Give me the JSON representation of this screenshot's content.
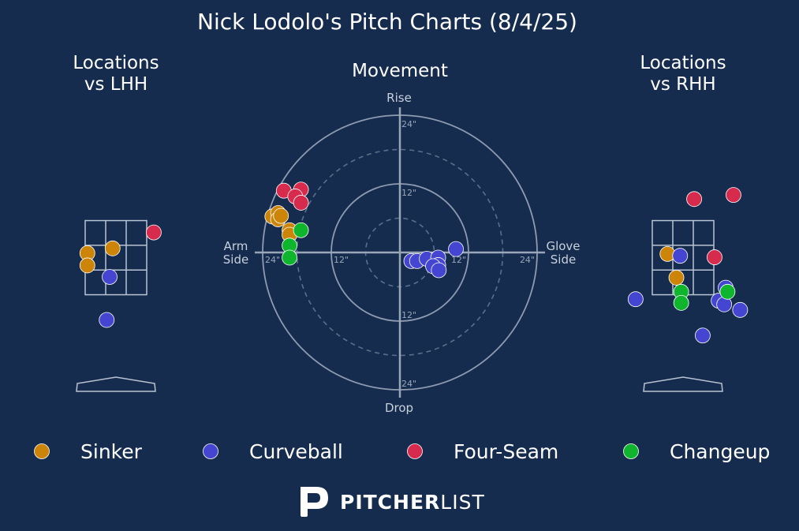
{
  "title": "Nick Lodolo's Pitch Charts (8/4/25)",
  "colors": {
    "background": "#152c4f",
    "Sinker": "#cc8508",
    "Curveball": "#4446d2",
    "Four-Seam": "#d62b4d",
    "Changeup": "#0fb52c"
  },
  "legend": [
    "Sinker",
    "Curveball",
    "Four-Seam",
    "Changeup"
  ],
  "brand": {
    "bold": "PITCHER",
    "light": "LIST",
    "logo_icon": "pitcherlist-p-logo-icon"
  },
  "chart_data": [
    {
      "type": "scatter",
      "title_lines": [
        "Locations",
        "vs LHH"
      ],
      "units": "plate location (ft), catcher view",
      "xlim": [
        -1.8,
        1.8
      ],
      "ylim": [
        -0.6,
        4.4
      ],
      "strike_zone": {
        "x": [
          -0.83,
          0.83
        ],
        "z": [
          1.5,
          3.5
        ]
      },
      "points": [
        {
          "pitch": "Sinker",
          "x": -0.77,
          "z": 2.62
        },
        {
          "pitch": "Sinker",
          "x": -0.77,
          "z": 2.29
        },
        {
          "pitch": "Sinker",
          "x": -0.09,
          "z": 2.75
        },
        {
          "pitch": "Four-Seam",
          "x": 1.02,
          "z": 3.18
        },
        {
          "pitch": "Curveball",
          "x": -0.17,
          "z": 1.98
        },
        {
          "pitch": "Curveball",
          "x": -0.25,
          "z": 0.82
        }
      ]
    },
    {
      "type": "scatter",
      "title": "Movement",
      "axis_labels": {
        "top": "Rise",
        "bottom": "Drop",
        "left": [
          "Arm",
          "Side"
        ],
        "right": [
          "Glove",
          "Side"
        ]
      },
      "units": "inches",
      "rings": [
        6,
        12,
        18,
        24
      ],
      "ring_labels": [
        "12\"",
        "24\""
      ],
      "xlim": [
        -25,
        25
      ],
      "ylim": [
        -25,
        25
      ],
      "points": [
        {
          "pitch": "Four-Seam",
          "x": -20.3,
          "y": 10.8
        },
        {
          "pitch": "Four-Seam",
          "x": -17.3,
          "y": 11.0
        },
        {
          "pitch": "Four-Seam",
          "x": -18.3,
          "y": 9.8
        },
        {
          "pitch": "Four-Seam",
          "x": -17.3,
          "y": 8.7
        },
        {
          "pitch": "Sinker",
          "x": -22.3,
          "y": 6.3
        },
        {
          "pitch": "Sinker",
          "x": -21.3,
          "y": 6.9
        },
        {
          "pitch": "Sinker",
          "x": -21.3,
          "y": 5.8
        },
        {
          "pitch": "Sinker",
          "x": -20.8,
          "y": 6.4
        },
        {
          "pitch": "Sinker",
          "x": -19.3,
          "y": 3.9
        },
        {
          "pitch": "Sinker",
          "x": -19.3,
          "y": 3.1
        },
        {
          "pitch": "Changeup",
          "x": -17.3,
          "y": 3.9
        },
        {
          "pitch": "Changeup",
          "x": -19.3,
          "y": 1.2
        },
        {
          "pitch": "Changeup",
          "x": -19.3,
          "y": -0.9
        },
        {
          "pitch": "Curveball",
          "x": 2.0,
          "y": -1.5
        },
        {
          "pitch": "Curveball",
          "x": 3.0,
          "y": -1.5
        },
        {
          "pitch": "Curveball",
          "x": 4.7,
          "y": -1.1
        },
        {
          "pitch": "Curveball",
          "x": 6.7,
          "y": -0.9
        },
        {
          "pitch": "Curveball",
          "x": 6.7,
          "y": -2.2
        },
        {
          "pitch": "Curveball",
          "x": 5.8,
          "y": -2.4
        },
        {
          "pitch": "Curveball",
          "x": 9.8,
          "y": 0.6
        },
        {
          "pitch": "Curveball",
          "x": 6.8,
          "y": -3.1
        }
      ]
    },
    {
      "type": "scatter",
      "title_lines": [
        "Locations",
        "vs RHH"
      ],
      "units": "plate location (ft), catcher view",
      "xlim": [
        -1.8,
        1.8
      ],
      "ylim": [
        -0.6,
        4.4
      ],
      "strike_zone": {
        "x": [
          -0.83,
          0.83
        ],
        "z": [
          1.5,
          3.5
        ]
      },
      "points": [
        {
          "pitch": "Sinker",
          "x": -0.42,
          "z": 2.6
        },
        {
          "pitch": "Sinker",
          "x": -0.18,
          "z": 1.96
        },
        {
          "pitch": "Curveball",
          "x": -0.08,
          "z": 2.55
        },
        {
          "pitch": "Curveball",
          "x": 1.15,
          "z": 1.69
        },
        {
          "pitch": "Curveball",
          "x": 0.96,
          "z": 1.34
        },
        {
          "pitch": "Curveball",
          "x": 1.11,
          "z": 1.24
        },
        {
          "pitch": "Curveball",
          "x": -1.28,
          "z": 1.38
        },
        {
          "pitch": "Curveball",
          "x": 0.53,
          "z": 0.4
        },
        {
          "pitch": "Curveball",
          "x": 1.54,
          "z": 1.09
        },
        {
          "pitch": "Four-Seam",
          "x": 0.3,
          "z": 4.08
        },
        {
          "pitch": "Four-Seam",
          "x": 1.36,
          "z": 4.19
        },
        {
          "pitch": "Four-Seam",
          "x": 0.85,
          "z": 2.51
        },
        {
          "pitch": "Changeup",
          "x": -0.05,
          "z": 1.58
        },
        {
          "pitch": "Changeup",
          "x": -0.05,
          "z": 1.28
        },
        {
          "pitch": "Changeup",
          "x": 1.2,
          "z": 1.58
        }
      ]
    }
  ]
}
